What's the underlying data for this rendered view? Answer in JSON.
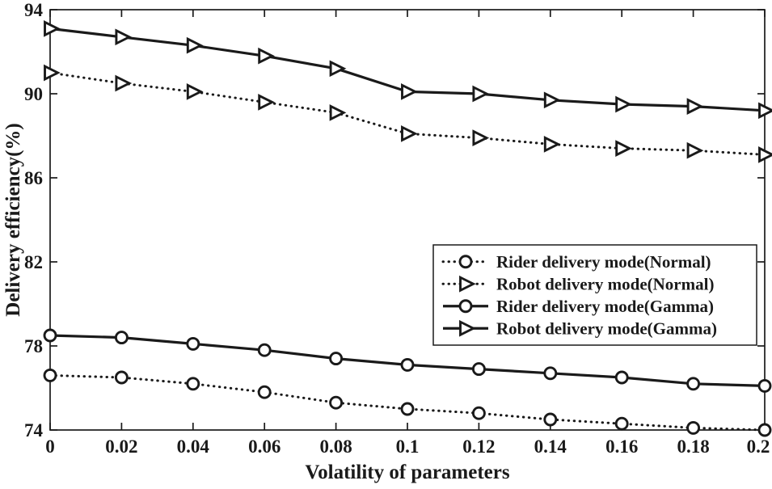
{
  "chart_data": {
    "type": "line",
    "title": "",
    "xlabel": "Volatility of parameters",
    "ylabel": "Delivery efficiency(%)",
    "xlim": [
      0,
      0.2
    ],
    "ylim": [
      74,
      94
    ],
    "xticks": [
      0,
      0.02,
      0.04,
      0.06,
      0.08,
      0.1,
      0.12,
      0.14,
      0.16,
      0.18,
      0.2
    ],
    "xtick_labels": [
      "0",
      "0.02",
      "0.04",
      "0.06",
      "0.08",
      "0.1",
      "0.12",
      "0.14",
      "0.16",
      "0.18",
      "0.2"
    ],
    "yticks": [
      74,
      78,
      82,
      86,
      90,
      94
    ],
    "ytick_labels": [
      "74",
      "78",
      "82",
      "86",
      "90",
      "94"
    ],
    "grid": false,
    "legend_position": "center-right",
    "x": [
      0,
      0.02,
      0.04,
      0.06,
      0.08,
      0.1,
      0.12,
      0.14,
      0.16,
      0.18,
      0.2
    ],
    "series": [
      {
        "name": "Rider delivery mode(Normal)",
        "line": "dotted",
        "marker": "circle",
        "values": [
          76.6,
          76.5,
          76.2,
          75.8,
          75.3,
          75.0,
          74.8,
          74.5,
          74.3,
          74.1,
          74.0
        ]
      },
      {
        "name": "Robot delivery mode(Normal)",
        "line": "dotted",
        "marker": "triangle-right",
        "values": [
          91.0,
          90.5,
          90.1,
          89.6,
          89.1,
          88.1,
          87.9,
          87.6,
          87.4,
          87.3,
          87.1
        ]
      },
      {
        "name": "Rider delivery mode(Gamma)",
        "line": "solid",
        "marker": "circle",
        "values": [
          78.5,
          78.4,
          78.1,
          77.8,
          77.4,
          77.1,
          76.9,
          76.7,
          76.5,
          76.2,
          76.1
        ]
      },
      {
        "name": "Robot delivery mode(Gamma)",
        "line": "solid",
        "marker": "triangle-right",
        "values": [
          93.1,
          92.7,
          92.3,
          91.8,
          91.2,
          90.1,
          90.0,
          89.7,
          89.5,
          89.4,
          89.2
        ]
      }
    ],
    "colors": {
      "line": "#1a1a1a",
      "background": "#ffffff"
    }
  }
}
